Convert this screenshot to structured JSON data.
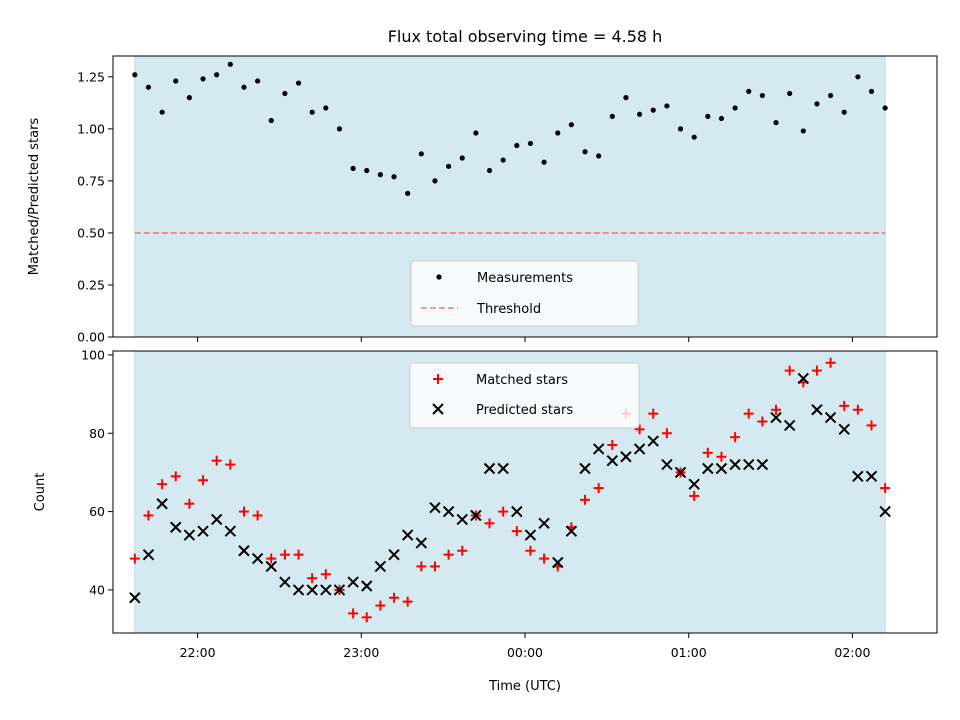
{
  "chart_data": [
    {
      "type": "scatter",
      "title": "Flux total observing time = 4.58 h",
      "xlabel": "",
      "ylabel": "Matched/Predicted stars",
      "ylim": [
        0,
        1.35
      ],
      "yticks": [
        "0.00",
        "0.25",
        "0.50",
        "0.75",
        "1.00",
        "1.25"
      ],
      "yticks_values": [
        0,
        0.25,
        0.5,
        0.75,
        1.0,
        1.25
      ],
      "xaxis": "time (UTC), minutes relative to 00:00, no tick labels on this panel",
      "shaded_span": {
        "from": "21:37",
        "to": "02:12",
        "color": "#d4eaf0"
      },
      "legend": {
        "placement": "lower-center",
        "entries": [
          "Measurements",
          "Threshold"
        ]
      },
      "series": [
        {
          "name": "Measurements",
          "marker": "dot",
          "color": "#000000",
          "x": [
            "21:37",
            "21:42",
            "21:47",
            "21:52",
            "21:57",
            "22:02",
            "22:07",
            "22:12",
            "22:17",
            "22:22",
            "22:27",
            "22:32",
            "22:37",
            "22:42",
            "22:47",
            "22:52",
            "22:57",
            "23:02",
            "23:07",
            "23:12",
            "23:17",
            "23:22",
            "23:27",
            "23:32",
            "23:37",
            "23:42",
            "23:47",
            "23:52",
            "23:57",
            "00:02",
            "00:07",
            "00:12",
            "00:17",
            "00:22",
            "00:27",
            "00:32",
            "00:37",
            "00:42",
            "00:47",
            "00:52",
            "00:57",
            "01:02",
            "01:07",
            "01:12",
            "01:17",
            "01:22",
            "01:27",
            "01:32",
            "01:37",
            "01:42",
            "01:47",
            "01:52",
            "01:57",
            "02:02",
            "02:07",
            "02:12"
          ],
          "values": [
            1.26,
            1.2,
            1.08,
            1.23,
            1.15,
            1.24,
            1.26,
            1.31,
            1.2,
            1.23,
            1.04,
            1.17,
            1.22,
            1.08,
            1.1,
            1.0,
            0.81,
            0.8,
            0.78,
            0.77,
            0.69,
            0.88,
            0.75,
            0.82,
            0.86,
            0.98,
            0.8,
            0.85,
            0.92,
            0.93,
            0.84,
            0.98,
            1.02,
            0.89,
            0.87,
            1.06,
            1.15,
            1.07,
            1.09,
            1.11,
            1.0,
            0.96,
            1.06,
            1.05,
            1.1,
            1.18,
            1.16,
            1.03,
            1.17,
            0.99,
            1.12,
            1.16,
            1.08,
            1.25,
            1.18,
            1.1
          ]
        },
        {
          "name": "Threshold",
          "style": "dashed",
          "color": "#f07a7a",
          "value": 0.5
        }
      ]
    },
    {
      "type": "scatter",
      "title": "",
      "xlabel": "Time (UTC)",
      "ylabel": "Count",
      "ylim": [
        29,
        101
      ],
      "yticks": [
        "40",
        "60",
        "80",
        "100"
      ],
      "yticks_values": [
        40,
        60,
        80,
        100
      ],
      "xticks": [
        "22:00",
        "23:00",
        "00:00",
        "01:00",
        "02:00"
      ],
      "xticks_minutes": [
        -120,
        -60,
        0,
        60,
        120
      ],
      "xlim_minutes": [
        -151,
        151
      ],
      "shaded_span": {
        "from": "21:37",
        "to": "02:12",
        "color": "#d4eaf0"
      },
      "legend": {
        "placement": "upper-center",
        "entries": [
          "Matched stars",
          "Predicted stars"
        ]
      },
      "series": [
        {
          "name": "Matched stars",
          "marker": "plus",
          "color": "#ff0000",
          "x": [
            "21:37",
            "21:42",
            "21:47",
            "21:52",
            "21:57",
            "22:02",
            "22:07",
            "22:12",
            "22:17",
            "22:22",
            "22:27",
            "22:32",
            "22:37",
            "22:42",
            "22:47",
            "22:52",
            "22:57",
            "23:02",
            "23:07",
            "23:12",
            "23:17",
            "23:22",
            "23:27",
            "23:32",
            "23:37",
            "23:42",
            "23:47",
            "23:52",
            "23:57",
            "00:02",
            "00:07",
            "00:12",
            "00:17",
            "00:22",
            "00:27",
            "00:32",
            "00:37",
            "00:42",
            "00:47",
            "00:52",
            "00:57",
            "01:02",
            "01:07",
            "01:12",
            "01:17",
            "01:22",
            "01:27",
            "01:32",
            "01:37",
            "01:42",
            "01:47",
            "01:52",
            "01:57",
            "02:02",
            "02:07",
            "02:12"
          ],
          "values": [
            48,
            59,
            67,
            69,
            62,
            68,
            73,
            72,
            60,
            59,
            48,
            49,
            49,
            43,
            44,
            40,
            34,
            33,
            36,
            38,
            37,
            46,
            46,
            49,
            50,
            59,
            57,
            60,
            55,
            50,
            48,
            46,
            56,
            63,
            66,
            77,
            85,
            81,
            85,
            80,
            70,
            64,
            75,
            74,
            79,
            85,
            83,
            86,
            96,
            93,
            96,
            98,
            87,
            86,
            82,
            66
          ]
        },
        {
          "name": "Predicted stars",
          "marker": "x",
          "color": "#000000",
          "x": [
            "21:37",
            "21:42",
            "21:47",
            "21:52",
            "21:57",
            "22:02",
            "22:07",
            "22:12",
            "22:17",
            "22:22",
            "22:27",
            "22:32",
            "22:37",
            "22:42",
            "22:47",
            "22:52",
            "22:57",
            "23:02",
            "23:07",
            "23:12",
            "23:17",
            "23:22",
            "23:27",
            "23:32",
            "23:37",
            "23:42",
            "23:47",
            "23:52",
            "23:57",
            "00:02",
            "00:07",
            "00:12",
            "00:17",
            "00:22",
            "00:27",
            "00:32",
            "00:37",
            "00:42",
            "00:47",
            "00:52",
            "00:57",
            "01:02",
            "01:07",
            "01:12",
            "01:17",
            "01:22",
            "01:27",
            "01:32",
            "01:37",
            "01:42",
            "01:47",
            "01:52",
            "01:57",
            "02:02",
            "02:07",
            "02:12"
          ],
          "values": [
            38,
            49,
            62,
            56,
            54,
            55,
            58,
            55,
            50,
            48,
            46,
            42,
            40,
            40,
            40,
            40,
            42,
            41,
            46,
            49,
            54,
            52,
            61,
            60,
            58,
            59,
            71,
            71,
            60,
            54,
            57,
            47,
            55,
            71,
            76,
            73,
            74,
            76,
            78,
            72,
            70,
            67,
            71,
            71,
            72,
            72,
            72,
            84,
            82,
            94,
            86,
            84,
            81,
            69,
            69,
            60
          ]
        }
      ]
    }
  ]
}
